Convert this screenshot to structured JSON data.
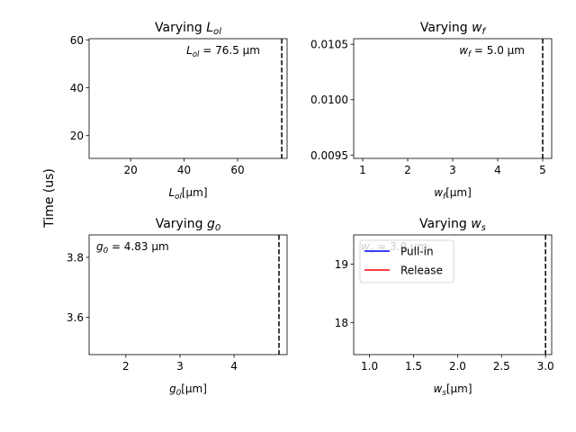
{
  "figure": {
    "ylabel": "Time (us)"
  },
  "chart_data": [
    {
      "type": "line",
      "title_prefix": "Varying ",
      "title_var": "L",
      "title_sub": "ol",
      "xlabel_var": "L",
      "xlabel_sub": "ol",
      "xlabel_unit": "[μm]",
      "xlim": [
        4.5,
        78.5
      ],
      "ylim": [
        10.5,
        60.5
      ],
      "xticks": [
        20,
        40,
        60
      ],
      "yticks": [
        20,
        40,
        60
      ],
      "vline": 76.5,
      "annotation": "= 76.5 μm",
      "annotation_align": "right",
      "series": []
    },
    {
      "type": "line",
      "title_prefix": "Varying ",
      "title_var": "w",
      "title_sub": "f",
      "xlabel_var": "w",
      "xlabel_sub": "f",
      "xlabel_unit": "[μm]",
      "xlim": [
        0.8,
        5.2
      ],
      "ylim": [
        0.00947,
        0.01055
      ],
      "xticks": [
        1,
        2,
        3,
        4,
        5
      ],
      "yticks": [
        0.0095,
        0.01,
        0.0105
      ],
      "ytick_labels": [
        "0.0095",
        "0.0100",
        "0.0105"
      ],
      "vline": 5.0,
      "annotation": "= 5.0 μm",
      "annotation_align": "right",
      "series": []
    },
    {
      "type": "line",
      "title_prefix": "Varying ",
      "title_var": "g",
      "title_sub": "0",
      "xlabel_var": "g",
      "xlabel_sub": "0",
      "xlabel_unit": "[μm]",
      "xlim": [
        1.32,
        4.98
      ],
      "ylim": [
        3.475,
        3.875
      ],
      "xticks": [
        2,
        3,
        4
      ],
      "yticks": [
        3.6,
        3.8
      ],
      "vline": 4.83,
      "annotation": "= 4.83 μm",
      "annotation_align": "left",
      "series": []
    },
    {
      "type": "line",
      "title_prefix": "Varying ",
      "title_var": "w",
      "title_sub": "s",
      "xlabel_var": "w",
      "xlabel_sub": "s",
      "xlabel_unit": "[μm]",
      "xlim": [
        0.82,
        3.07
      ],
      "ylim": [
        17.45,
        19.5
      ],
      "xticks": [
        1.0,
        1.5,
        2.0,
        2.5,
        3.0
      ],
      "ytick_labels_x": [
        "1.0",
        "1.5",
        "2.0",
        "2.5",
        "3.0"
      ],
      "yticks": [
        18,
        19
      ],
      "vline": 3.0,
      "annotation": "= 3.0 μm",
      "annotation_align": "left",
      "legend": {
        "placement": "upper-left",
        "entries": [
          {
            "name": "Pull-in",
            "color": "#0000ff"
          },
          {
            "name": "Release",
            "color": "#ff0000"
          }
        ]
      },
      "series": []
    }
  ]
}
